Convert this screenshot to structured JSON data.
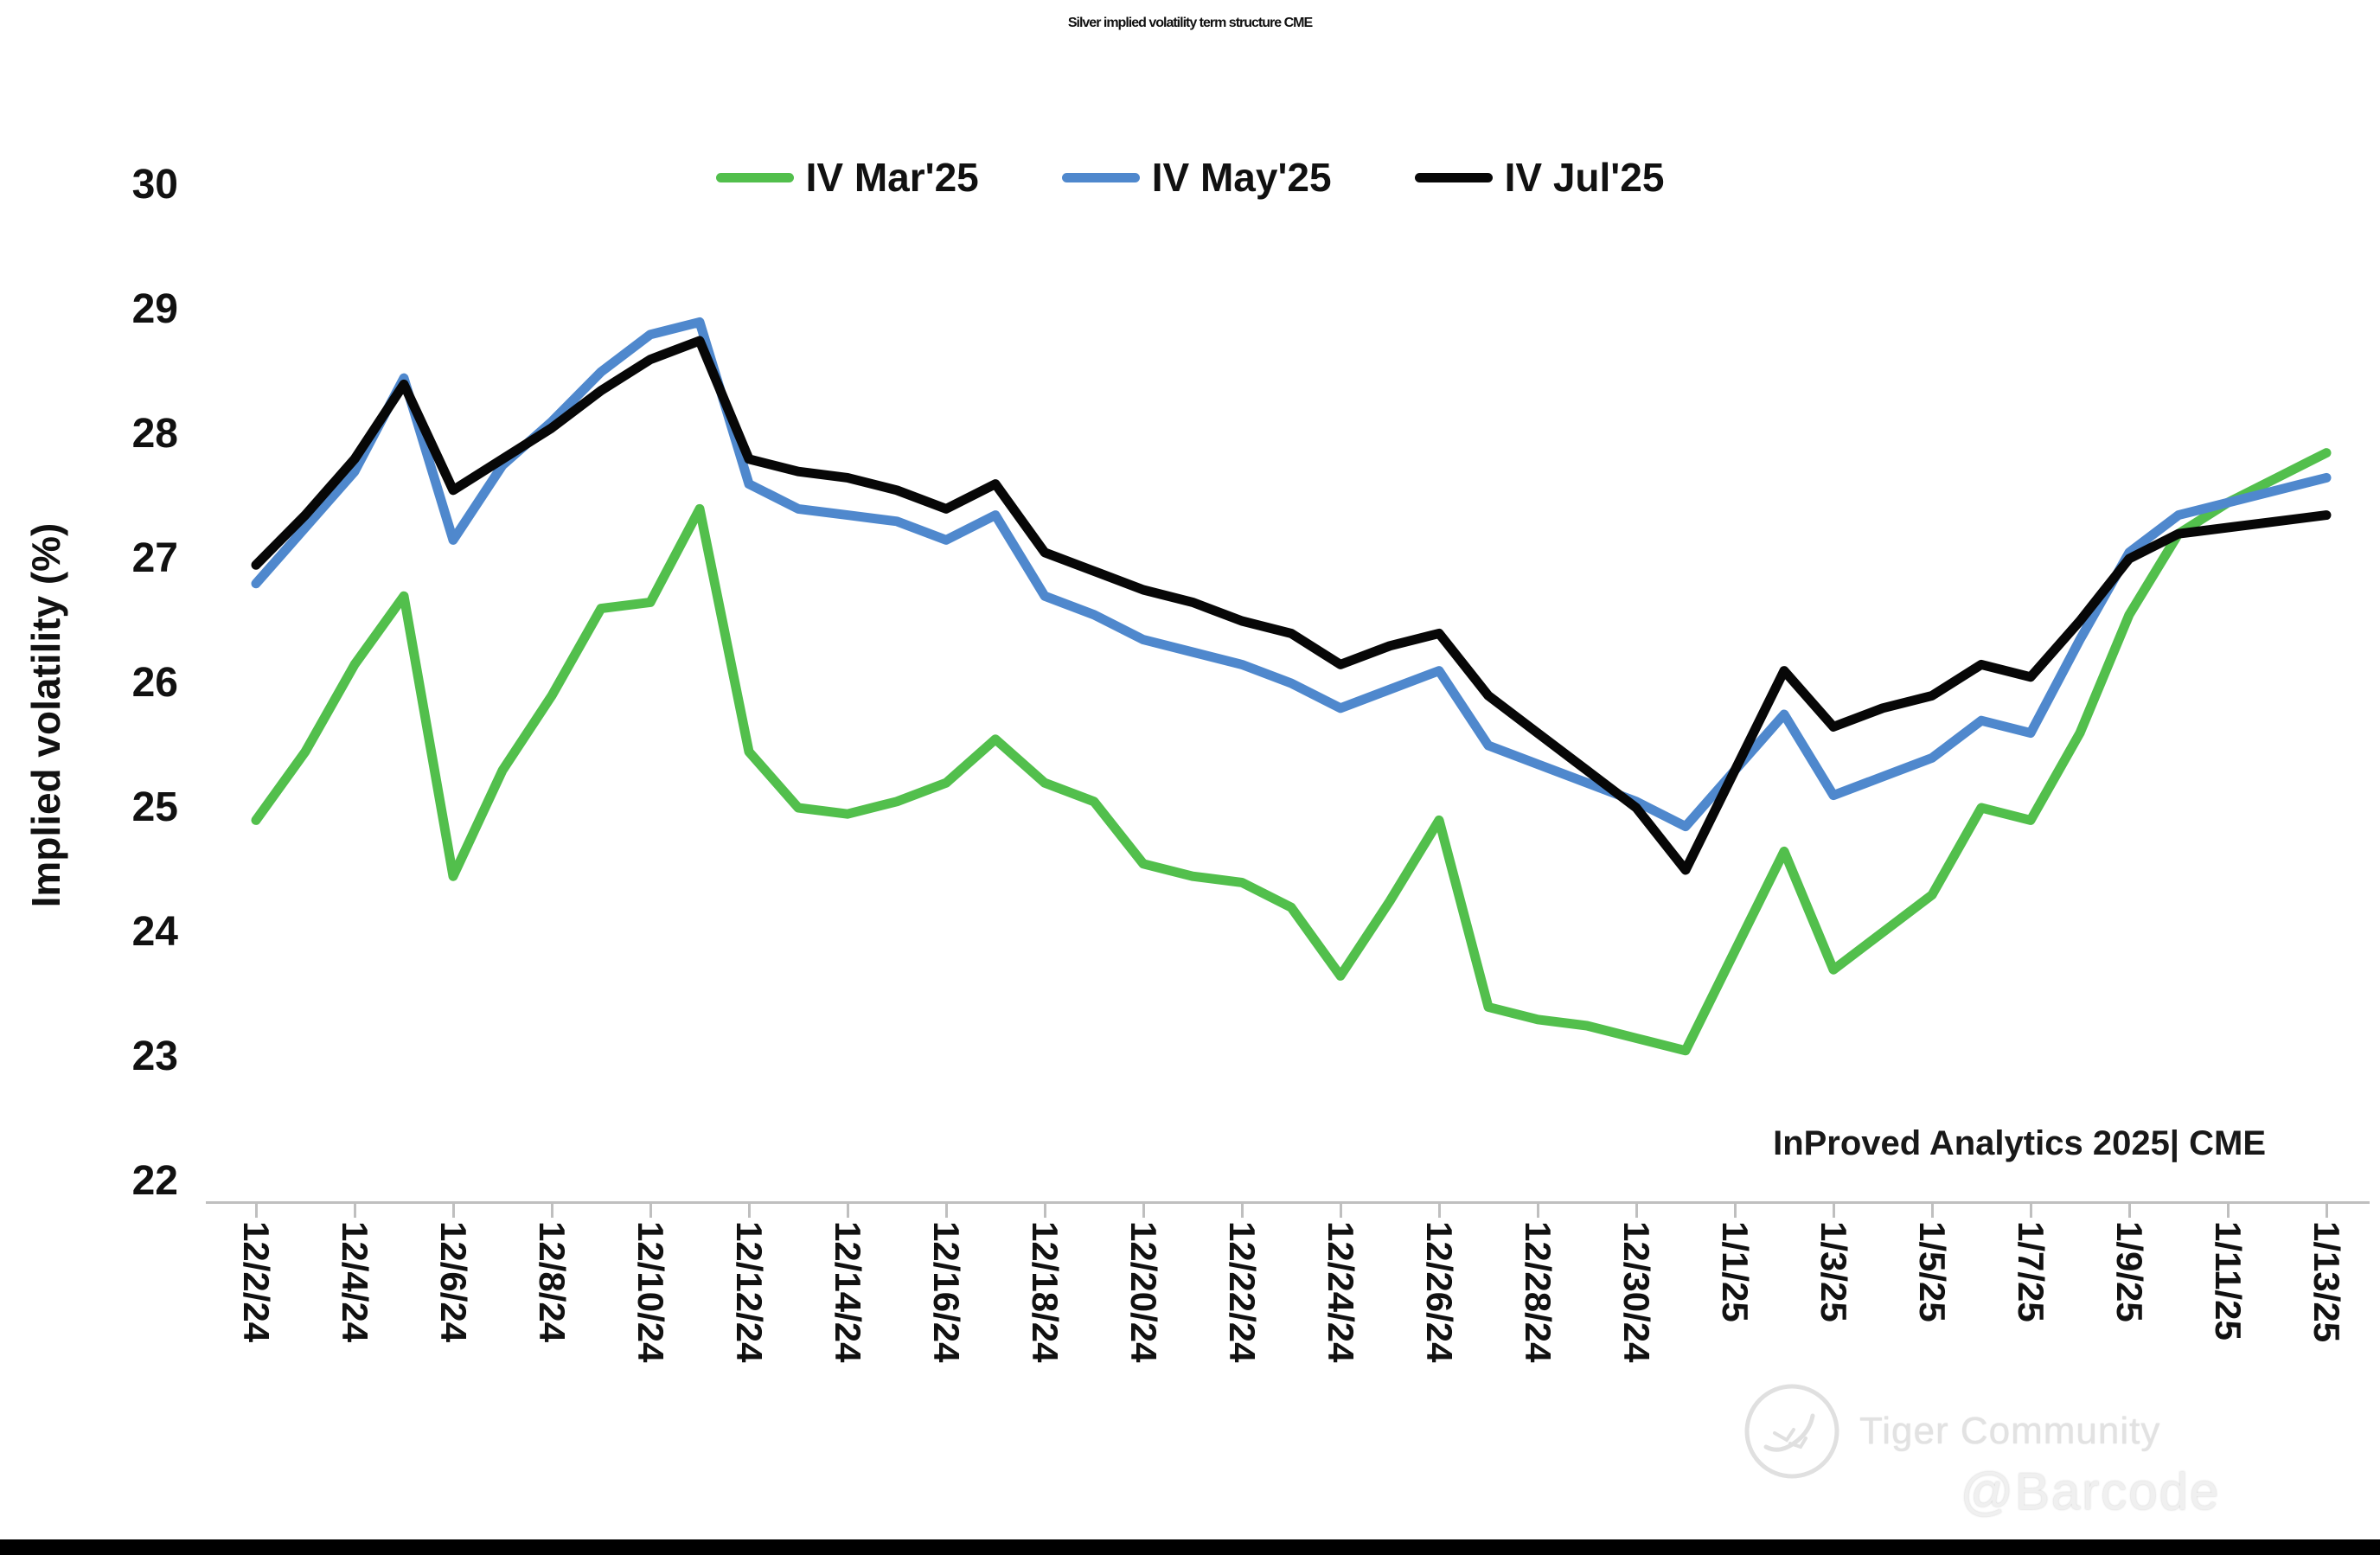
{
  "page": {
    "background": "#ffffff"
  },
  "watermark": {
    "community": "Tiger Community",
    "handle": "@Barcode"
  },
  "chart_data": {
    "type": "line",
    "title": "Silver implied volatility term structure CME",
    "ylabel": "Implied volatility (%)",
    "xlabel": "",
    "ylim": [
      22,
      30
    ],
    "grid": false,
    "legend_position": "top-center",
    "attribution": "InProved Analytics 2025| CME",
    "axis_color": "#bfbfbf",
    "y_ticks": [
      "30",
      "29",
      "28",
      "27",
      "26",
      "25",
      "24",
      "23",
      "22"
    ],
    "y_tick_values": [
      30,
      29,
      28,
      27,
      26,
      25,
      24,
      23,
      22
    ],
    "x": [
      "12/2/24",
      "12/3/24",
      "12/4/24",
      "12/5/24",
      "12/6/24",
      "12/7/24",
      "12/8/24",
      "12/9/24",
      "12/10/24",
      "12/11/24",
      "12/12/24",
      "12/13/24",
      "12/14/24",
      "12/15/24",
      "12/16/24",
      "12/17/24",
      "12/18/24",
      "12/19/24",
      "12/20/24",
      "12/21/24",
      "12/22/24",
      "12/23/24",
      "12/24/24",
      "12/25/24",
      "12/26/24",
      "12/27/24",
      "12/28/24",
      "12/29/24",
      "12/30/24",
      "12/31/24",
      "1/1/25",
      "1/2/25",
      "1/3/25",
      "1/4/25",
      "1/5/25",
      "1/6/25",
      "1/7/25",
      "1/8/25",
      "1/9/25",
      "1/10/25",
      "1/11/25",
      "1/12/25",
      "1/13/25"
    ],
    "x_tick_labels": [
      "12/2/24",
      "12/4/24",
      "12/6/24",
      "12/8/24",
      "12/10/24",
      "12/12/24",
      "12/14/24",
      "12/16/24",
      "12/18/24",
      "12/20/24",
      "12/22/24",
      "12/24/24",
      "12/26/24",
      "12/28/24",
      "12/30/24",
      "1/1/25",
      "1/3/25",
      "1/5/25",
      "1/7/25",
      "1/9/25",
      "1/11/25",
      "1/13/25"
    ],
    "series": [
      {
        "name": "IV Mar'25",
        "color": "#52bf4c",
        "values": [
          24.9,
          25.45,
          26.15,
          26.7,
          24.45,
          25.3,
          25.9,
          26.6,
          26.65,
          27.4,
          25.45,
          25.0,
          24.95,
          25.05,
          25.2,
          25.55,
          25.2,
          25.05,
          24.55,
          24.45,
          24.4,
          24.2,
          23.65,
          24.25,
          24.9,
          23.4,
          23.3,
          23.25,
          23.15,
          23.05,
          23.85,
          24.65,
          23.7,
          24.0,
          24.3,
          25.0,
          24.9,
          25.6,
          26.55,
          27.2,
          27.45,
          27.65,
          27.85
        ]
      },
      {
        "name": "IV May'25",
        "color": "#4f88cd",
        "values": [
          26.8,
          27.25,
          27.7,
          28.45,
          27.15,
          27.75,
          28.1,
          28.5,
          28.8,
          28.9,
          27.6,
          27.4,
          27.35,
          27.3,
          27.15,
          27.35,
          26.7,
          26.55,
          26.35,
          26.25,
          26.15,
          26.0,
          25.8,
          25.95,
          26.1,
          25.5,
          25.35,
          25.2,
          25.05,
          24.85,
          25.3,
          25.75,
          25.1,
          25.25,
          25.4,
          25.7,
          25.6,
          26.35,
          27.05,
          27.35,
          27.45,
          27.55,
          27.65
        ]
      },
      {
        "name": "IV Jul'25",
        "color": "#070707",
        "values": [
          26.95,
          27.35,
          27.8,
          28.4,
          27.55,
          27.8,
          28.05,
          28.35,
          28.6,
          28.75,
          27.8,
          27.7,
          27.65,
          27.55,
          27.4,
          27.6,
          27.05,
          26.9,
          26.75,
          26.65,
          26.5,
          26.4,
          26.15,
          26.3,
          26.4,
          25.9,
          25.6,
          25.3,
          25.0,
          24.5,
          25.3,
          26.1,
          25.65,
          25.8,
          25.9,
          26.15,
          26.05,
          26.5,
          27.0,
          27.2,
          27.25,
          27.3,
          27.35
        ]
      }
    ]
  }
}
